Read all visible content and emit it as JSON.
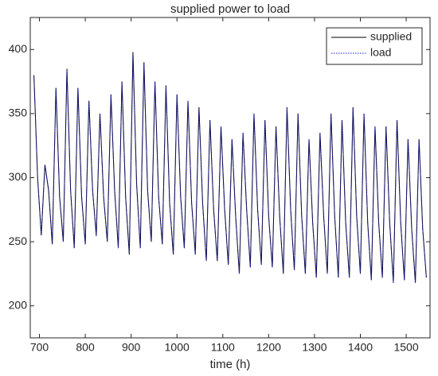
{
  "chart_data": {
    "type": "line",
    "title": "supplied power to load",
    "x_label": "time (h)",
    "x": [
      688,
      696,
      704,
      712,
      720,
      728,
      736,
      744,
      752,
      760,
      768,
      776,
      784,
      792,
      800,
      808,
      816,
      824,
      832,
      840,
      848,
      856,
      864,
      872,
      880,
      888,
      896,
      904,
      912,
      920,
      928,
      936,
      944,
      952,
      960,
      968,
      976,
      984,
      992,
      1000,
      1008,
      1016,
      1024,
      1032,
      1040,
      1048,
      1056,
      1064,
      1072,
      1080,
      1088,
      1096,
      1104,
      1112,
      1120,
      1128,
      1136,
      1144,
      1152,
      1160,
      1168,
      1176,
      1184,
      1192,
      1200,
      1208,
      1216,
      1224,
      1232,
      1240,
      1248,
      1256,
      1264,
      1272,
      1280,
      1288,
      1296,
      1304,
      1312,
      1320,
      1328,
      1336,
      1344,
      1352,
      1360,
      1368,
      1376,
      1384,
      1392,
      1400,
      1408,
      1416,
      1424,
      1432,
      1440,
      1448,
      1456,
      1464,
      1472,
      1480,
      1488,
      1496,
      1504,
      1512,
      1520,
      1528,
      1536,
      1544
    ],
    "series": [
      {
        "name": "supplied",
        "color": "#000000",
        "dash": "solid",
        "values": [
          380,
          300,
          255,
          310,
          290,
          248,
          370,
          285,
          250,
          385,
          290,
          245,
          370,
          285,
          248,
          360,
          290,
          255,
          350,
          285,
          250,
          365,
          290,
          245,
          375,
          285,
          240,
          398,
          295,
          245,
          390,
          290,
          250,
          375,
          285,
          248,
          372,
          280,
          240,
          365,
          285,
          245,
          360,
          280,
          240,
          355,
          280,
          235,
          345,
          275,
          235,
          340,
          275,
          232,
          330,
          270,
          225,
          335,
          275,
          230,
          350,
          275,
          232,
          345,
          270,
          230,
          340,
          270,
          225,
          355,
          275,
          228,
          350,
          270,
          225,
          330,
          265,
          222,
          335,
          270,
          225,
          350,
          270,
          222,
          345,
          265,
          222,
          355,
          270,
          225,
          350,
          265,
          220,
          340,
          265,
          222,
          340,
          265,
          218,
          345,
          265,
          220,
          330,
          260,
          218,
          330,
          260,
          222
        ]
      },
      {
        "name": "load",
        "color": "#1f1fbf",
        "dash": "dotted",
        "values": [
          379,
          300,
          256,
          310,
          291,
          248,
          370,
          285,
          250,
          384,
          290,
          245,
          370,
          286,
          248,
          360,
          290,
          254,
          350,
          285,
          250,
          365,
          291,
          245,
          375,
          285,
          241,
          397,
          295,
          245,
          390,
          290,
          250,
          375,
          285,
          248,
          371,
          280,
          240,
          365,
          285,
          245,
          360,
          281,
          240,
          355,
          280,
          235,
          345,
          275,
          235,
          340,
          276,
          232,
          330,
          270,
          225,
          335,
          275,
          230,
          350,
          275,
          232,
          345,
          270,
          230,
          340,
          270,
          225,
          355,
          275,
          228,
          350,
          270,
          225,
          330,
          265,
          222,
          335,
          270,
          225,
          350,
          270,
          222,
          345,
          265,
          222,
          355,
          270,
          225,
          350,
          265,
          220,
          340,
          265,
          222,
          340,
          265,
          218,
          345,
          265,
          220,
          330,
          260,
          218,
          330,
          260,
          222
        ]
      }
    ],
    "xlim": [
      680,
      1552
    ],
    "xticks": [
      700,
      800,
      900,
      1000,
      1100,
      1200,
      1300,
      1400,
      1500
    ],
    "ylim": [
      175,
      425
    ],
    "yticks": [
      200,
      250,
      300,
      350,
      400
    ],
    "legend": "upper right",
    "grid": false
  }
}
